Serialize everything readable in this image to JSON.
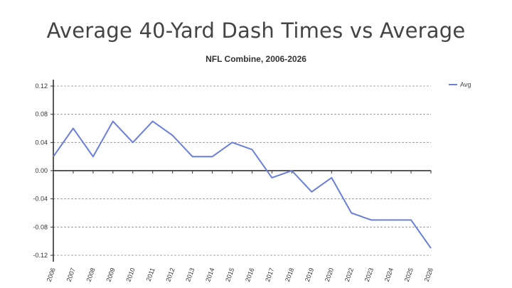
{
  "chart_data": {
    "type": "line",
    "title": "Average 40-Yard Dash Times vs Average",
    "subtitle": "NFL Combine, 2006-2026",
    "xlabel": "",
    "ylabel": "",
    "x": [
      "2006",
      "2007",
      "2008",
      "2009",
      "2010",
      "2011",
      "2012",
      "2013",
      "2014",
      "2015",
      "2016",
      "2017",
      "2018",
      "2019",
      "2020",
      "2022",
      "2023",
      "2024",
      "2025",
      "2026"
    ],
    "series": [
      {
        "name": "Avg",
        "color": "#6a7fd6",
        "values": [
          0.02,
          0.06,
          0.02,
          0.07,
          0.04,
          0.07,
          0.05,
          0.02,
          0.02,
          0.04,
          0.03,
          -0.01,
          0.0,
          -0.03,
          -0.01,
          -0.06,
          -0.07,
          -0.07,
          -0.07,
          -0.11
        ]
      }
    ],
    "ylim": [
      -0.13,
      0.13
    ],
    "yticks": [
      "0.12",
      "0.08",
      "0.04",
      "0.00",
      "-0.04",
      "-0.08",
      "-0.12"
    ],
    "ytick_values": [
      0.12,
      0.08,
      0.04,
      0.0,
      -0.04,
      -0.08,
      -0.12
    ],
    "grid": true,
    "legend": "top-right"
  }
}
